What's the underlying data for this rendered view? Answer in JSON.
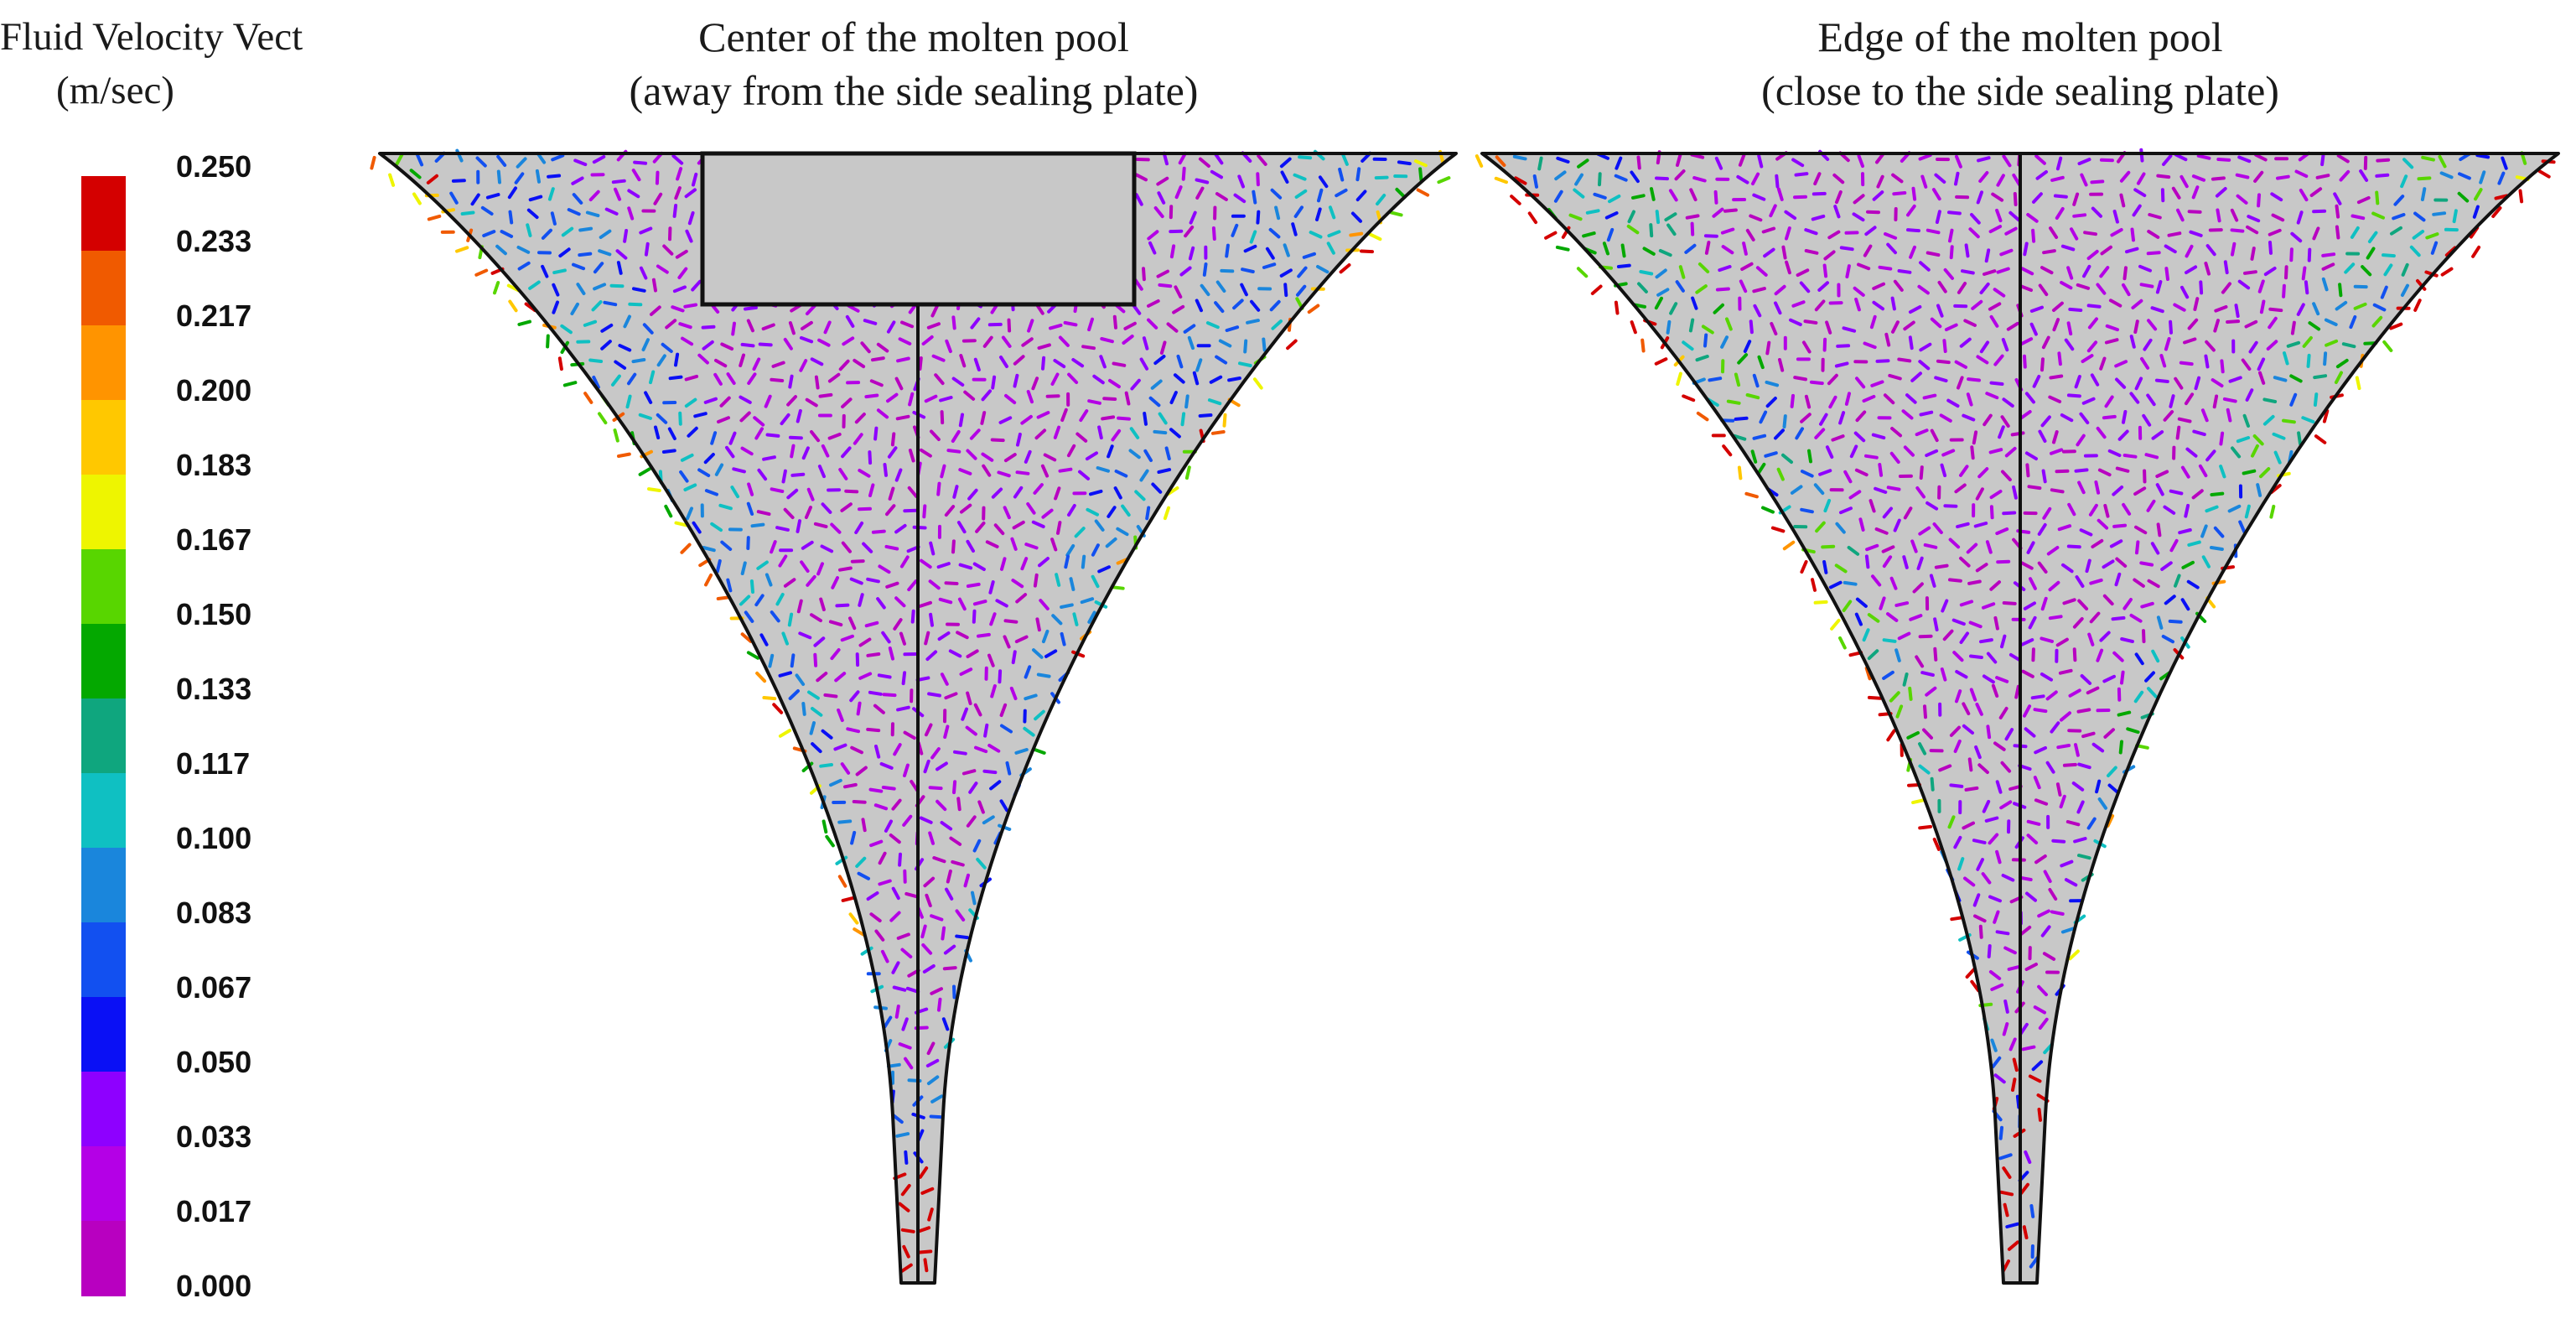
{
  "legend": {
    "title_line1": "Fluid Velocity Vect",
    "title_line2": "(m/sec)",
    "ticks": [
      "0.250",
      "0.233",
      "0.217",
      "0.200",
      "0.183",
      "0.167",
      "0.150",
      "0.133",
      "0.117",
      "0.100",
      "0.083",
      "0.067",
      "0.050",
      "0.033",
      "0.017",
      "0.000"
    ],
    "colors": [
      "#d40000",
      "#f05a00",
      "#ff9400",
      "#ffc800",
      "#eef500",
      "#58d600",
      "#04a800",
      "#0fa67e",
      "#0fc0c2",
      "#1a86dc",
      "#1250f0",
      "#0a10f5",
      "#8e00ff",
      "#b400e6",
      "#b800c0"
    ]
  },
  "left_panel": {
    "title_line1": "Center of the molten pool",
    "title_line2": "(away from the side sealing plate)"
  },
  "right_panel": {
    "title_line1": "Edge of the molten pool",
    "title_line2": "(close to the side sealing plate)"
  },
  "style": {
    "pool_fill": "#c8c8c8",
    "outline": "#111111"
  }
}
